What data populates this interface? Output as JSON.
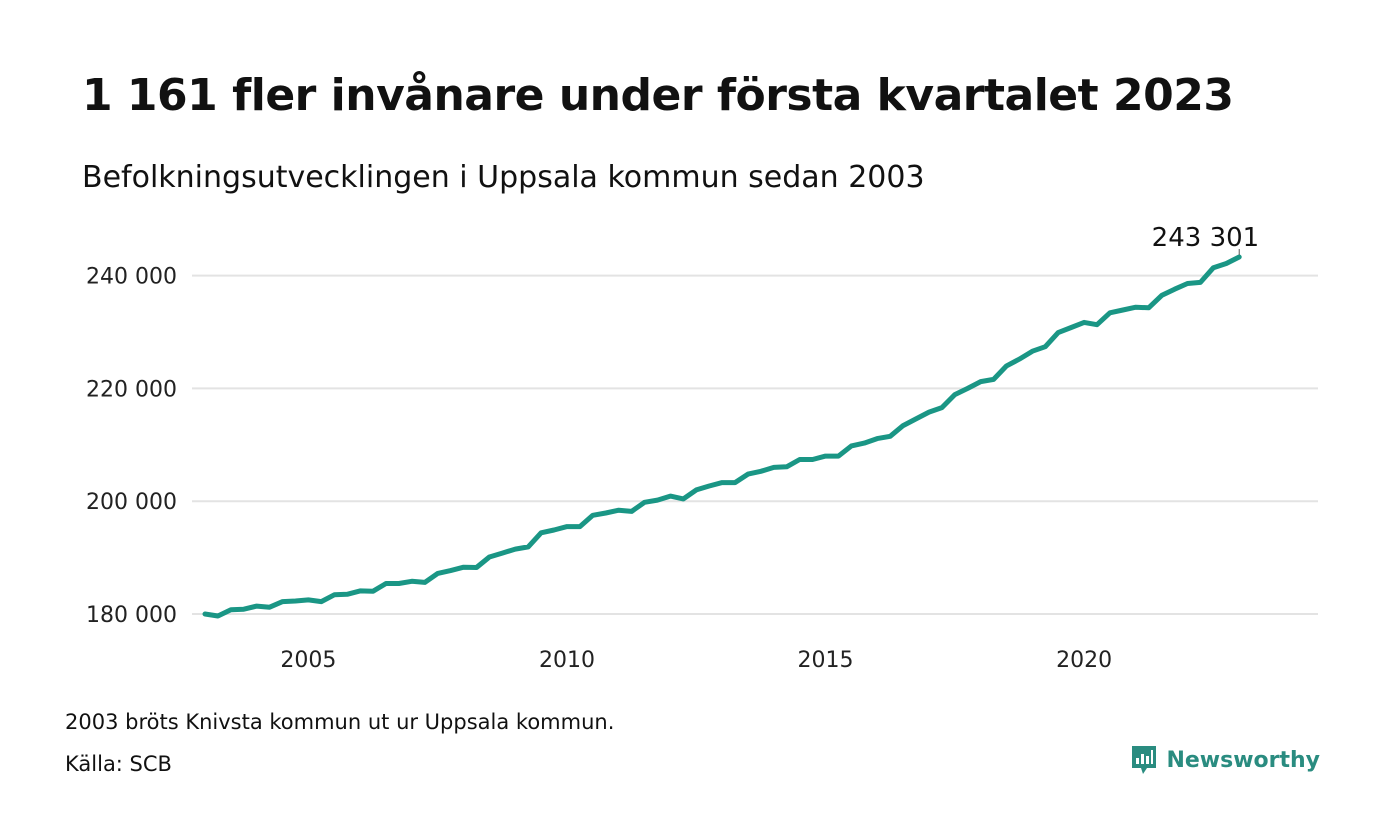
{
  "colors": {
    "line": "#1a9685",
    "grid": "#e3e3e3",
    "brand": "#2a8c80"
  },
  "title": "1 161 fler invånare under första kvartalet 2023",
  "subtitle": "Befolkningsutvecklingen i Uppsala kommun sedan 2003",
  "footnote": "2003 bröts Knivsta kommun ut ur Uppsala kommun.",
  "source": "Källa: SCB",
  "brand": {
    "name": "Newsworthy",
    "icon": "newsworthy-logo-icon"
  },
  "chart_data": {
    "type": "line",
    "title": "1 161 fler invånare under första kvartalet 2023",
    "subtitle": "Befolkningsutvecklingen i Uppsala kommun sedan 2003",
    "xlabel": "",
    "ylabel": "",
    "xlim": [
      2003.0,
      2023.75
    ],
    "ylim": [
      180000,
      243301
    ],
    "grid": true,
    "legend": "none",
    "x_ticks": [
      {
        "value": 2005,
        "label": "2005"
      },
      {
        "value": 2010,
        "label": "2010"
      },
      {
        "value": 2015,
        "label": "2015"
      },
      {
        "value": 2020,
        "label": "2020"
      }
    ],
    "y_ticks": [
      {
        "value": 180000,
        "label": "180 000"
      },
      {
        "value": 200000,
        "label": "200 000"
      },
      {
        "value": 220000,
        "label": "220 000"
      },
      {
        "value": 240000,
        "label": "240 000"
      }
    ],
    "end_label": "243 301",
    "series": [
      {
        "x": [
          2003.0,
          2003.25,
          2003.5,
          2003.75,
          2004.0,
          2004.25,
          2004.5,
          2004.75,
          2005.0,
          2005.25,
          2005.5,
          2005.75,
          2006.0,
          2006.25,
          2006.5,
          2006.75,
          2007.0,
          2007.25,
          2007.5,
          2007.75,
          2008.0,
          2008.25,
          2008.5,
          2008.75,
          2009.0,
          2009.25,
          2009.5,
          2009.75,
          2010.0,
          2010.25,
          2010.5,
          2010.75,
          2011.0,
          2011.25,
          2011.5,
          2011.75,
          2012.0,
          2012.25,
          2012.5,
          2012.75,
          2013.0,
          2013.25,
          2013.5,
          2013.75,
          2014.0,
          2014.25,
          2014.5,
          2014.75,
          2015.0,
          2015.25,
          2015.5,
          2015.75,
          2016.0,
          2016.25,
          2016.5,
          2016.75,
          2017.0,
          2017.25,
          2017.5,
          2017.75,
          2018.0,
          2018.25,
          2018.5,
          2018.75,
          2019.0,
          2019.25,
          2019.5,
          2019.75,
          2020.0,
          2020.25,
          2020.5,
          2020.75,
          2021.0,
          2021.25,
          2021.5,
          2021.75,
          2022.0,
          2022.25,
          2022.5,
          2022.75,
          2023.0
        ],
        "values": [
          180000,
          179650,
          180750,
          180850,
          181400,
          181200,
          182200,
          182300,
          182500,
          182200,
          183400,
          183500,
          184100,
          184050,
          185400,
          185400,
          185800,
          185600,
          187200,
          187700,
          188300,
          188250,
          190100,
          190800,
          191500,
          191900,
          194400,
          194900,
          195500,
          195500,
          197500,
          197900,
          198400,
          198200,
          199800,
          200200,
          200900,
          200400,
          202000,
          202700,
          203300,
          203300,
          204800,
          205300,
          206000,
          206100,
          207400,
          207400,
          208000,
          208000,
          209800,
          210300,
          211100,
          211500,
          213400,
          214600,
          215800,
          216600,
          218900,
          220000,
          221200,
          221600,
          224000,
          225200,
          226600,
          227400,
          229900,
          230800,
          231700,
          231300,
          233400,
          233900,
          234400,
          234300,
          236500,
          237600,
          238600,
          238800,
          241400,
          242140,
          243301
        ]
      }
    ]
  }
}
